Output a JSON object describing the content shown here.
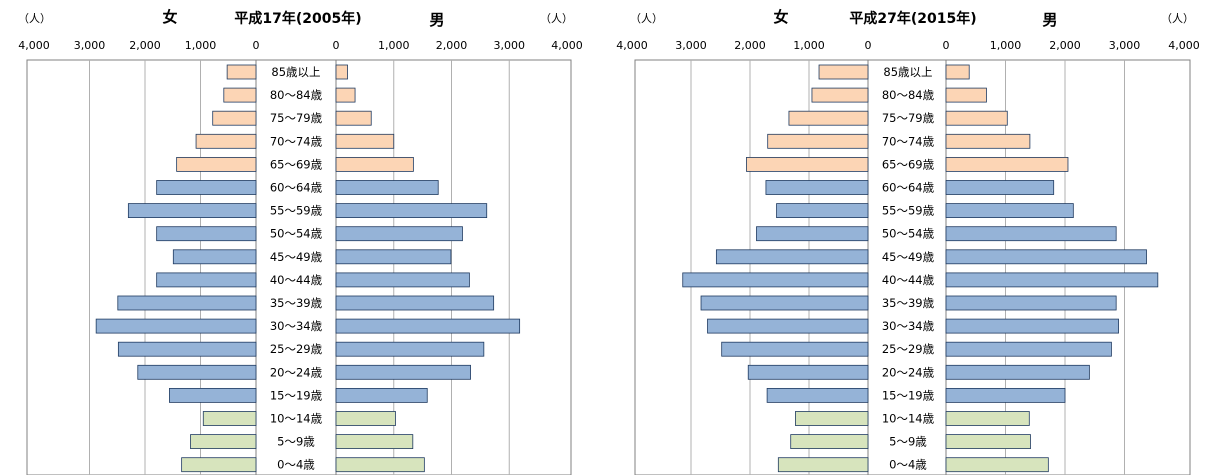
{
  "chart_data": [
    {
      "type": "bar",
      "subtype": "population-pyramid",
      "title": "平成17年(2005年)",
      "female_label": "女",
      "male_label": "男",
      "unit_left": "（人）",
      "unit_right": "（人）",
      "categories": [
        "85歳以上",
        "80～84歳",
        "75～79歳",
        "70～74歳",
        "65～69歳",
        "60～64歳",
        "55～59歳",
        "50～54歳",
        "45～49歳",
        "40～44歳",
        "35～39歳",
        "30～34歳",
        "25～29歳",
        "20～24歳",
        "15～19歳",
        "10～14歳",
        "5～9歳",
        "0～4歳"
      ],
      "xticks": [
        "4,000",
        "3,000",
        "2,000",
        "1,000",
        "0"
      ],
      "xticks_right": [
        "0",
        "1,000",
        "2,000",
        "3,000",
        "4,000"
      ],
      "xlim": [
        0,
        4000
      ],
      "series": [
        {
          "name": "女",
          "values": [
            520,
            580,
            780,
            1080,
            1430,
            1790,
            2300,
            1790,
            1490,
            1790,
            2490,
            2880,
            2480,
            2130,
            1560,
            950,
            1180,
            1340
          ]
        },
        {
          "name": "男",
          "values": [
            200,
            330,
            610,
            1000,
            1340,
            1770,
            2610,
            2190,
            1990,
            2310,
            2730,
            3180,
            2560,
            2330,
            1580,
            1030,
            1330,
            1530
          ]
        }
      ],
      "age_group_colors": {
        "elderly": "#fcd5b5",
        "working": "#95b3d7",
        "young": "#d7e4bd"
      },
      "grid": true
    },
    {
      "type": "bar",
      "subtype": "population-pyramid",
      "title": "平成27年(2015年)",
      "female_label": "女",
      "male_label": "男",
      "unit_left": "（人）",
      "unit_right": "（人）",
      "categories": [
        "85歳以上",
        "80～84歳",
        "75～79歳",
        "70～74歳",
        "65～69歳",
        "60～64歳",
        "55～59歳",
        "50～54歳",
        "45～49歳",
        "40～44歳",
        "35～39歳",
        "30～34歳",
        "25～29歳",
        "20～24歳",
        "15～19歳",
        "10～14歳",
        "5～9歳",
        "0～4歳"
      ],
      "xticks": [
        "4,000",
        "3,000",
        "2,000",
        "1,000",
        "0"
      ],
      "xticks_right": [
        "0",
        "1,000",
        "2,000",
        "3,000",
        "4,000"
      ],
      "xlim": [
        0,
        4000
      ],
      "series": [
        {
          "name": "女",
          "values": [
            830,
            950,
            1340,
            1700,
            2060,
            1730,
            1550,
            1890,
            2570,
            3140,
            2830,
            2720,
            2480,
            2030,
            1710,
            1230,
            1310,
            1520
          ]
        },
        {
          "name": "男",
          "values": [
            390,
            680,
            1030,
            1410,
            2050,
            1810,
            2140,
            2860,
            3370,
            3560,
            2860,
            2900,
            2780,
            2410,
            2000,
            1400,
            1420,
            1720
          ]
        }
      ],
      "age_group_colors": {
        "elderly": "#fcd5b5",
        "working": "#95b3d7",
        "young": "#d7e4bd"
      },
      "grid": true
    }
  ]
}
